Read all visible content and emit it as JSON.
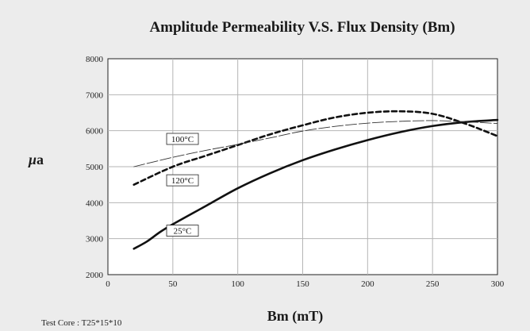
{
  "chart_data": {
    "type": "line",
    "title": "Amplitude Permeability V.S. Flux Density (Bm)",
    "xlabel": "Bm (mT)",
    "ylabel_prefix": "μ",
    "ylabel_suffix": "a",
    "xlim": [
      0,
      300
    ],
    "ylim": [
      2000,
      8000
    ],
    "xticks": [
      0,
      50,
      100,
      150,
      200,
      250,
      300
    ],
    "yticks": [
      2000,
      3000,
      4000,
      5000,
      6000,
      7000,
      8000
    ],
    "grid": true,
    "legend": "inline labels",
    "series": [
      {
        "name": "25°C",
        "style": "solid-thick",
        "color": "#111111",
        "x": [
          20,
          30,
          40,
          50,
          75,
          100,
          125,
          150,
          175,
          200,
          225,
          250,
          275,
          300
        ],
        "y": [
          2720,
          2920,
          3180,
          3400,
          3900,
          4400,
          4820,
          5180,
          5480,
          5740,
          5960,
          6130,
          6240,
          6300
        ]
      },
      {
        "name": "120°C",
        "style": "dashed-thick",
        "color": "#111111",
        "x": [
          20,
          50,
          75,
          100,
          125,
          150,
          175,
          200,
          225,
          250,
          275,
          300
        ],
        "y": [
          4500,
          5000,
          5300,
          5600,
          5900,
          6150,
          6370,
          6500,
          6540,
          6470,
          6200,
          5850
        ]
      },
      {
        "name": "100°C",
        "style": "long-dash-thin",
        "color": "#333333",
        "x": [
          20,
          50,
          75,
          100,
          125,
          150,
          175,
          200,
          225,
          250,
          275,
          300
        ],
        "y": [
          5000,
          5260,
          5450,
          5620,
          5800,
          5990,
          6120,
          6210,
          6260,
          6280,
          6250,
          6200
        ]
      }
    ],
    "note": "Test Core : T25*15*10"
  }
}
